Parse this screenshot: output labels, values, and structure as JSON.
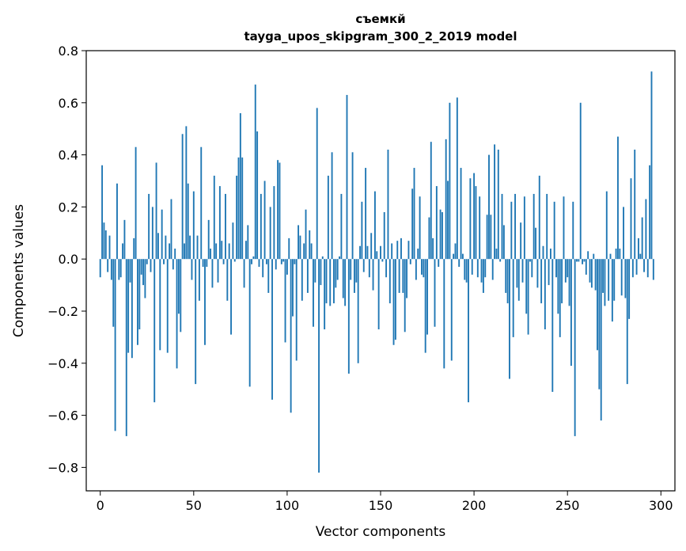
{
  "chart_data": {
    "type": "bar",
    "title": "съемкй",
    "subtitle": "tayga_upos_skipgram_300_2_2019 model",
    "xlabel": "Vector components",
    "ylabel": "Components values",
    "xlim": [
      -7.5,
      307.5
    ],
    "ylim": [
      -0.89,
      0.8
    ],
    "xticks": [
      0,
      50,
      100,
      150,
      200,
      250,
      300
    ],
    "yticks": [
      -0.8,
      -0.6,
      -0.4,
      -0.2,
      0.0,
      0.2,
      0.4,
      0.6,
      0.8
    ],
    "ytick_labels": [
      "−0.8",
      "−0.6",
      "−0.4",
      "−0.2",
      "0.0",
      "0.2",
      "0.4",
      "0.6",
      "0.8"
    ],
    "grid": false,
    "bar_color": "#1f77b4",
    "values": [
      -0.07,
      0.36,
      0.14,
      0.11,
      -0.05,
      0.09,
      -0.08,
      -0.26,
      -0.66,
      0.29,
      -0.08,
      -0.07,
      0.06,
      0.15,
      -0.68,
      -0.36,
      -0.09,
      -0.38,
      0.08,
      0.43,
      -0.33,
      -0.27,
      -0.06,
      -0.1,
      -0.15,
      -0.02,
      0.25,
      -0.05,
      0.2,
      -0.55,
      0.37,
      0.1,
      -0.35,
      0.19,
      -0.02,
      0.09,
      -0.36,
      0.06,
      0.23,
      -0.04,
      0.04,
      -0.42,
      -0.21,
      -0.28,
      0.48,
      0.06,
      0.51,
      0.29,
      0.09,
      -0.08,
      0.26,
      -0.48,
      0.09,
      -0.16,
      0.43,
      -0.03,
      -0.33,
      -0.03,
      0.15,
      0.04,
      -0.11,
      0.32,
      0.06,
      -0.09,
      0.28,
      0.07,
      -0.02,
      0.25,
      -0.16,
      0.06,
      -0.29,
      0.14,
      -0.01,
      0.32,
      0.39,
      0.56,
      0.39,
      -0.11,
      0.07,
      0.13,
      -0.49,
      -0.02,
      0.01,
      0.67,
      0.49,
      -0.03,
      0.25,
      -0.07,
      0.3,
      -0.02,
      -0.13,
      0.2,
      -0.54,
      0.28,
      -0.04,
      0.38,
      0.37,
      -0.02,
      -0.01,
      -0.32,
      -0.06,
      0.08,
      -0.59,
      -0.22,
      -0.02,
      -0.39,
      0.13,
      0.09,
      -0.16,
      0.06,
      0.19,
      -0.13,
      0.11,
      0.06,
      -0.26,
      -0.09,
      0.58,
      -0.82,
      -0.1,
      0.01,
      -0.27,
      -0.17,
      0.32,
      -0.18,
      0.41,
      -0.17,
      -0.11,
      -0.08,
      0.01,
      0.25,
      -0.15,
      -0.18,
      0.63,
      -0.44,
      -0.08,
      0.41,
      -0.13,
      -0.09,
      -0.4,
      0.05,
      0.22,
      -0.05,
      0.35,
      0.05,
      -0.07,
      0.1,
      -0.12,
      0.26,
      0.03,
      -0.27,
      0.05,
      -0.01,
      0.18,
      -0.07,
      0.42,
      -0.17,
      0.06,
      -0.33,
      -0.31,
      0.07,
      -0.13,
      0.08,
      -0.13,
      -0.28,
      -0.15,
      0.07,
      -0.02,
      0.27,
      0.35,
      -0.08,
      0.04,
      0.24,
      -0.06,
      -0.07,
      -0.36,
      -0.29,
      0.16,
      0.45,
      0.08,
      -0.26,
      0.28,
      -0.03,
      0.19,
      0.18,
      -0.42,
      0.46,
      0.3,
      0.6,
      -0.39,
      0.02,
      0.06,
      0.62,
      -0.03,
      0.35,
      0.02,
      -0.08,
      -0.09,
      -0.55,
      0.31,
      -0.06,
      0.33,
      0.28,
      -0.07,
      0.24,
      -0.09,
      -0.13,
      -0.07,
      0.17,
      0.4,
      0.17,
      -0.08,
      0.44,
      0.04,
      0.42,
      -0.01,
      0.25,
      0.13,
      -0.13,
      -0.17,
      -0.46,
      0.22,
      -0.3,
      0.25,
      -0.11,
      -0.16,
      0.14,
      -0.09,
      0.24,
      -0.21,
      -0.29,
      -0.01,
      -0.07,
      0.25,
      0.12,
      -0.11,
      0.32,
      -0.17,
      0.05,
      -0.27,
      0.25,
      -0.1,
      0.04,
      -0.51,
      0.22,
      -0.07,
      -0.21,
      -0.3,
      -0.17,
      0.24,
      -0.09,
      -0.07,
      -0.18,
      -0.41,
      0.22,
      -0.68,
      -0.01,
      -0.01,
      0.6,
      -0.02,
      -0.01,
      -0.06,
      0.03,
      -0.09,
      -0.11,
      0.02,
      -0.12,
      -0.35,
      -0.5,
      -0.62,
      -0.13,
      -0.18,
      0.26,
      -0.16,
      0.02,
      -0.24,
      -0.16,
      0.04,
      0.47,
      0.04,
      -0.14,
      0.2,
      -0.15,
      -0.48,
      -0.23,
      0.31,
      -0.07,
      0.42,
      -0.06,
      0.08,
      0.02,
      0.16,
      -0.05,
      0.23,
      -0.07,
      0.36,
      0.72,
      -0.08
    ]
  }
}
